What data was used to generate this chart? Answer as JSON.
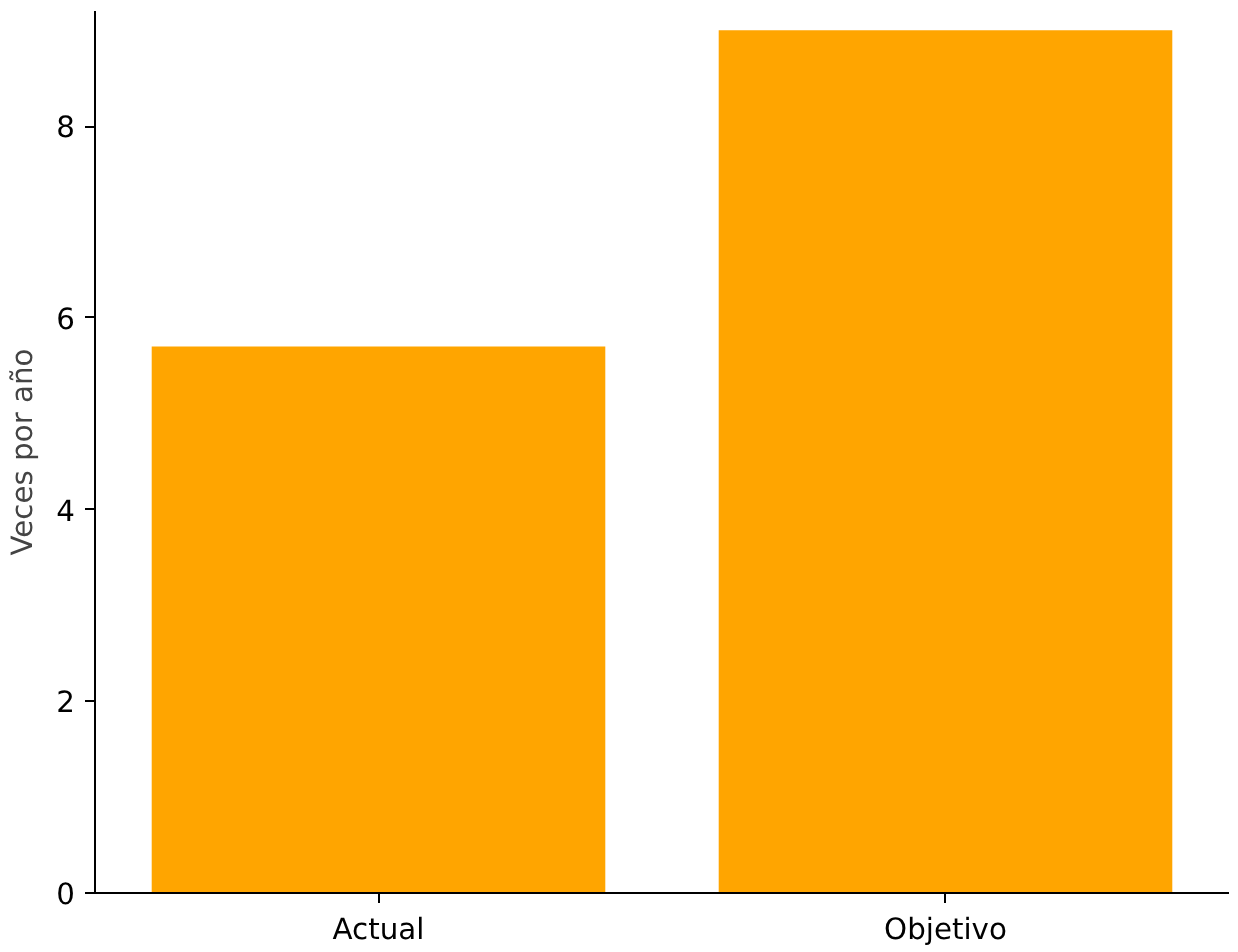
{
  "chart_data": {
    "type": "bar",
    "ylabel": "Veces por año",
    "categories": [
      "Actual",
      "Objetivo"
    ],
    "values": [
      5.7,
      9.0
    ],
    "color": "#ffa500",
    "ylim": [
      0,
      9.2
    ],
    "yticks": [
      0,
      2,
      4,
      6,
      8
    ],
    "grid": false
  }
}
